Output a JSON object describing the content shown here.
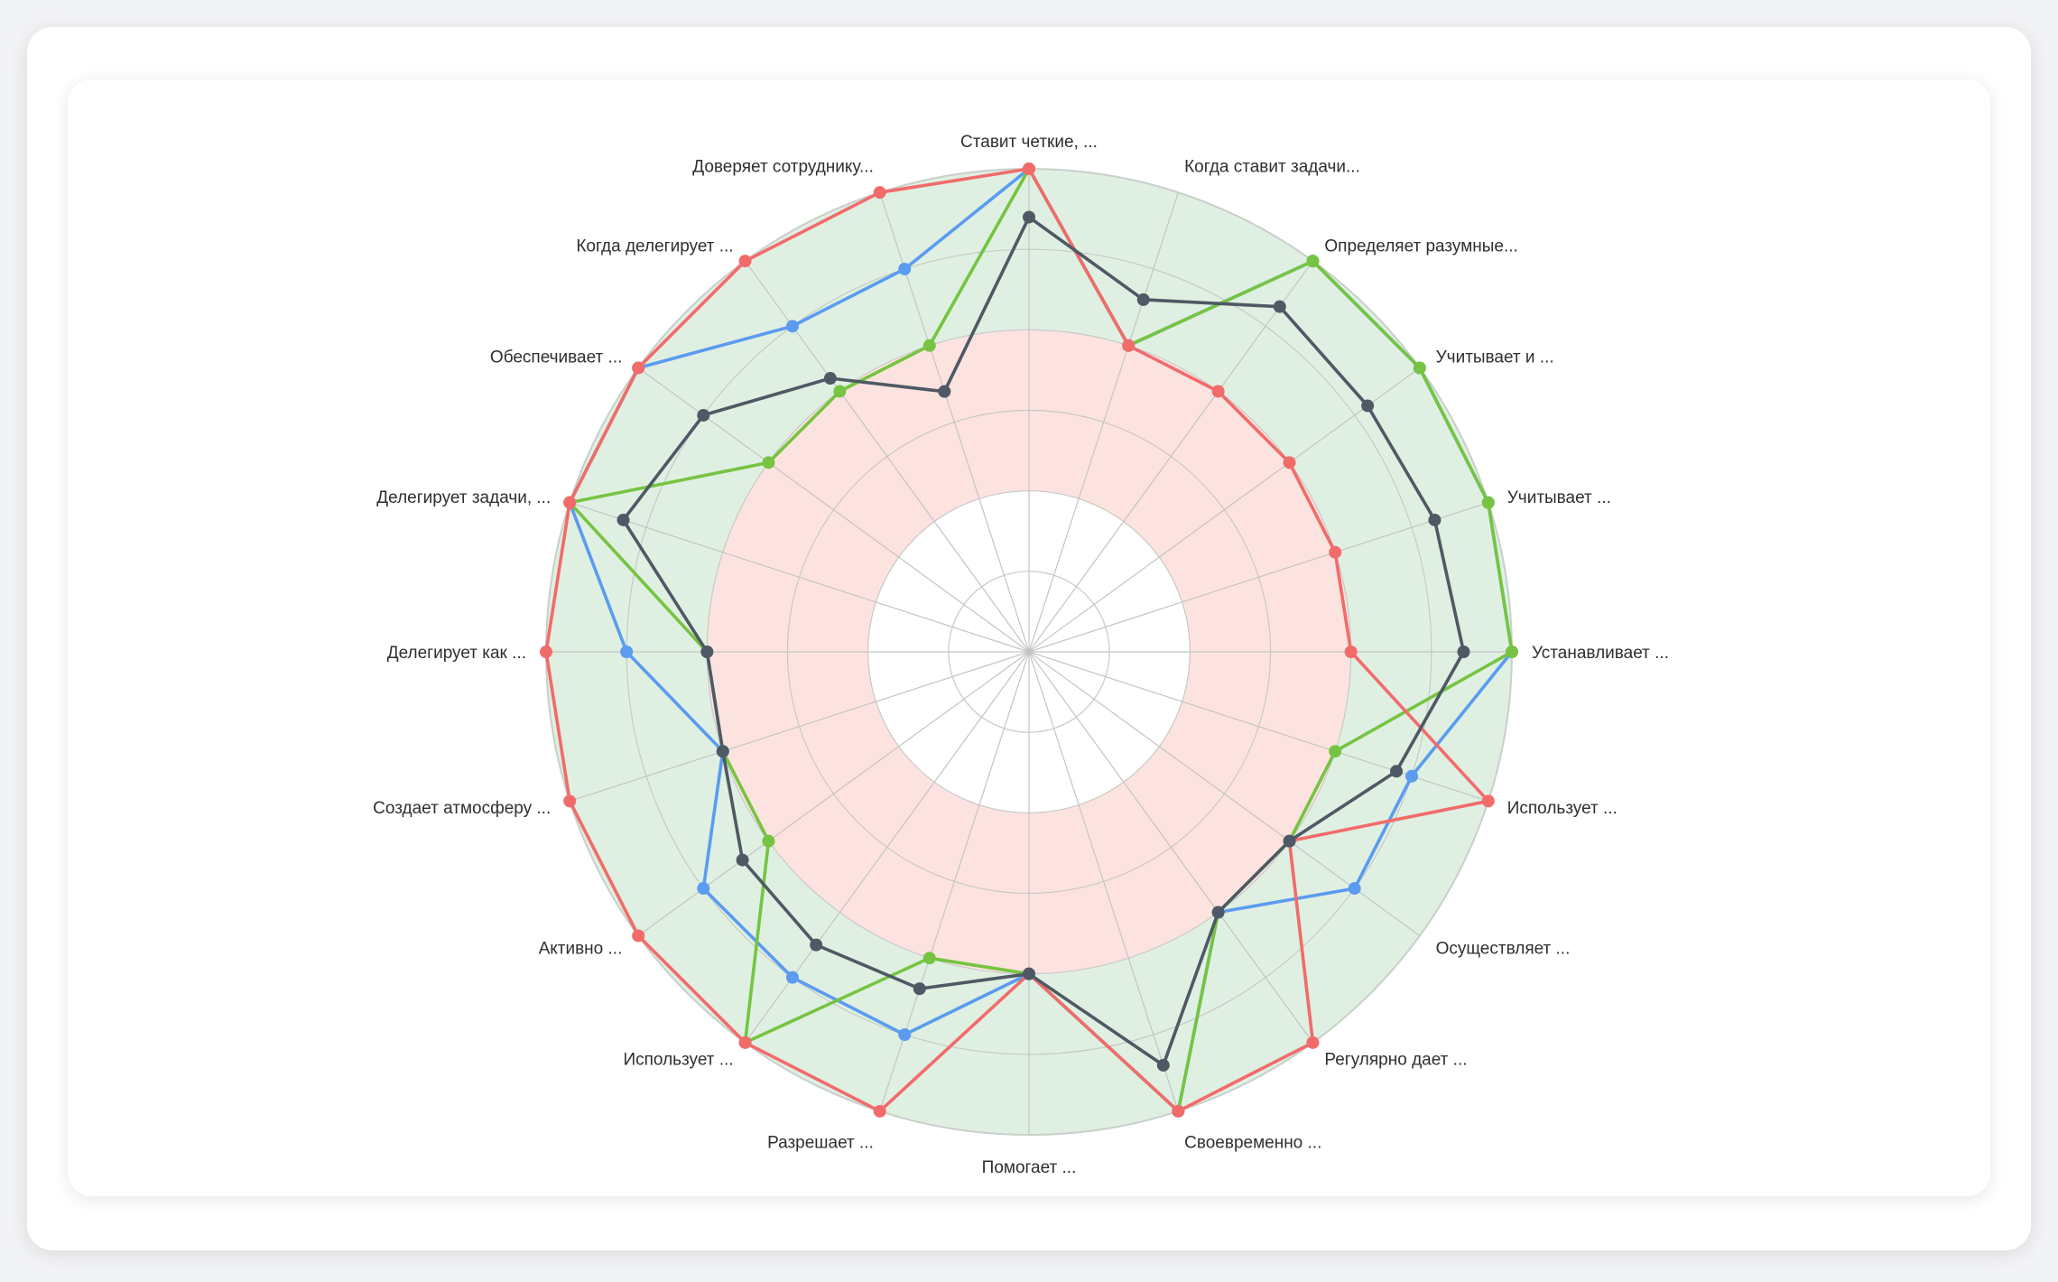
{
  "chart_data": {
    "type": "radar",
    "title": "",
    "rmax": 6,
    "grid_levels": 6,
    "bands": [
      {
        "from": 0,
        "to": 2,
        "color": "#ffffff"
      },
      {
        "from": 2,
        "to": 4,
        "color": "#fde3df"
      },
      {
        "from": 4,
        "to": 6,
        "color": "#dff0e2"
      }
    ],
    "axes": [
      "Ставит четкие, ...",
      "Когда ставит задачи...",
      "Определяет разумные...",
      "Учитывает и ...",
      "Учитывает ...",
      "Устанавливает ...",
      "Использует ...",
      "Осуществляет ...",
      "Регулярно дает ...",
      "Своевременно ...",
      "Помогает ...",
      "Разрешает ...",
      "Использует ...",
      "Активно ...",
      "Создает атмосферу ...",
      "Делегирует как ...",
      "Делегирует задачи, ...",
      "Обеспечивает ...",
      "Когда делегирует ...",
      "Доверяет сотруднику..."
    ],
    "series": [
      {
        "color": "#5b9bf0",
        "values": [
          6,
          4,
          6,
          6,
          6,
          6,
          5,
          5,
          4,
          6,
          4,
          5,
          5,
          5,
          4,
          5,
          6,
          6,
          5,
          5
        ]
      },
      {
        "color": "#76c442",
        "values": [
          6,
          4,
          6,
          6,
          6,
          6,
          4,
          4,
          4,
          6,
          4,
          4,
          6,
          4,
          4,
          4,
          6,
          4,
          4,
          4
        ]
      },
      {
        "color": "#f26b6b",
        "values": [
          6,
          4,
          4,
          4,
          4,
          4,
          6,
          4,
          6,
          6,
          4,
          6,
          6,
          6,
          6,
          6,
          6,
          6,
          6,
          6
        ]
      },
      {
        "color": "#4e5965",
        "values": [
          5.4,
          4.6,
          5.3,
          5.2,
          5.3,
          5.4,
          4.8,
          4,
          4,
          5.4,
          4,
          4.4,
          4.5,
          4.4,
          4,
          4,
          5.3,
          5,
          4.2,
          3.4
        ]
      }
    ]
  }
}
